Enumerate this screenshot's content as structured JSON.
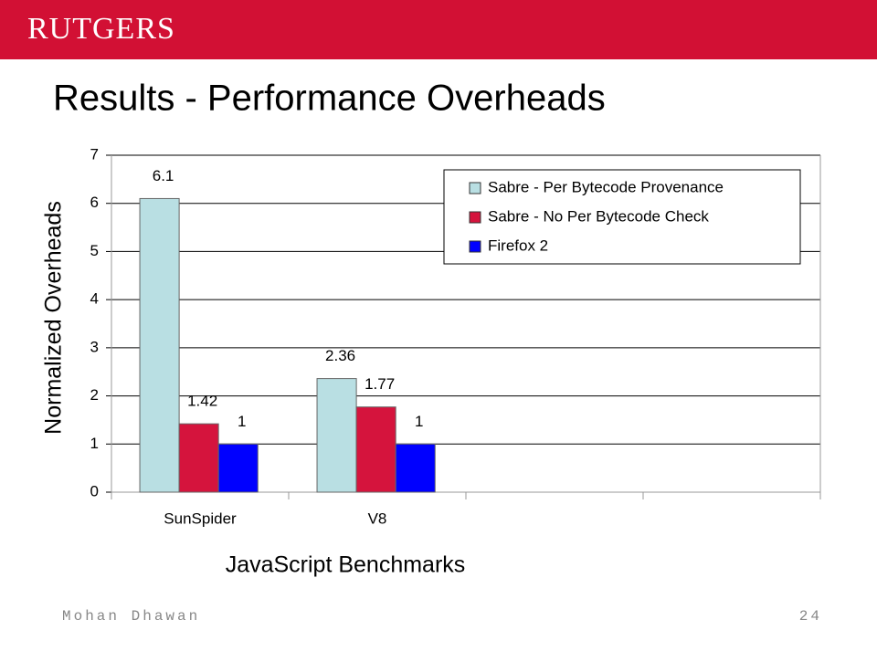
{
  "header": {
    "logo": "RUTGERS"
  },
  "slide_title": "Results - Performance Overheads",
  "footer": {
    "author": "Mohan Dhawan",
    "page": "24"
  },
  "chart_data": {
    "type": "bar",
    "xlabel": "JavaScript Benchmarks",
    "ylabel": "Normalized Overheads",
    "categories": [
      "SunSpider",
      "V8",
      null,
      null
    ],
    "series": [
      {
        "name": "Sabre - Per Bytecode Provenance",
        "color": "#b9dfe3",
        "values": [
          6.1,
          2.36,
          null,
          null
        ]
      },
      {
        "name": "Sabre - No Per Bytecode Check",
        "color": "#d5143d",
        "values": [
          1.42,
          1.77,
          null,
          null
        ]
      },
      {
        "name": "Firefox 2",
        "color": "#0000ff",
        "values": [
          1,
          1,
          null,
          null
        ]
      }
    ],
    "ylim": [
      0,
      7
    ],
    "yticks": [
      0,
      1,
      2,
      3,
      4,
      5,
      6,
      7
    ],
    "grid": true,
    "legend": "upper right"
  }
}
